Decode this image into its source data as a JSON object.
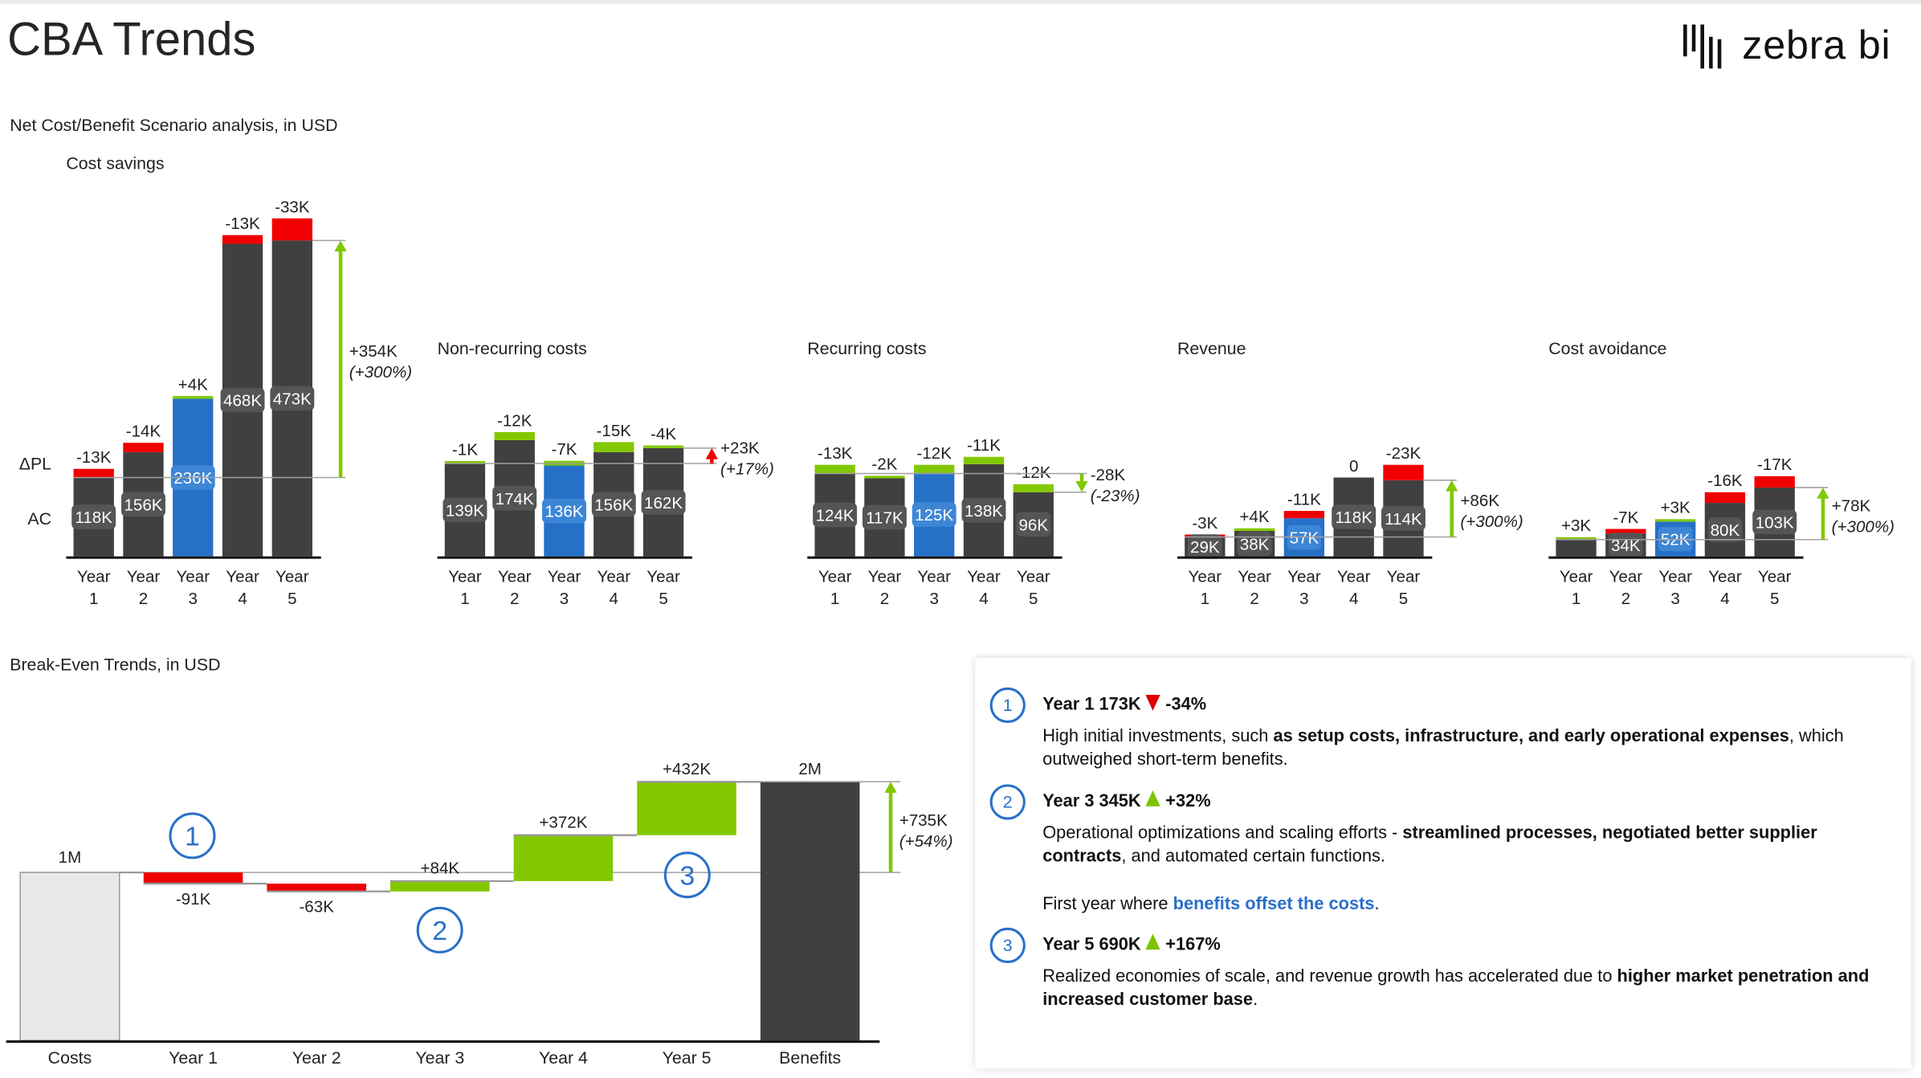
{
  "header": {
    "title": "CBA Trends",
    "logo_text": "zebra bi"
  },
  "section1": {
    "subtitle": "Net Cost/Benefit Scenario analysis, in USD",
    "row_labels": {
      "delta": "ΔPL",
      "actual": "AC"
    }
  },
  "section2": {
    "subtitle": "Break-Even Trends, in USD"
  },
  "colors": {
    "dark": "#404040",
    "highlight": "#2770c8",
    "negative": "#f00000",
    "positive": "#82c800",
    "reference": "#a0a0a0",
    "light_bar": "#e8e8e8",
    "marker": "#2a6fc9"
  },
  "chart_data": [
    {
      "type": "bar",
      "title": "Cost savings",
      "unit": "K USD",
      "highlight_index": 2,
      "negative_is_good": false,
      "bars": [
        {
          "cat": [
            "Year",
            "1"
          ],
          "ac": 118,
          "ac_label": "118K",
          "delta": -13,
          "delta_label": "-13K"
        },
        {
          "cat": [
            "Year",
            "2"
          ],
          "ac": 156,
          "ac_label": "156K",
          "delta": -14,
          "delta_label": "-14K"
        },
        {
          "cat": [
            "Year",
            "3"
          ],
          "ac": 236,
          "ac_label": "236K",
          "delta": 4,
          "delta_label": "+4K"
        },
        {
          "cat": [
            "Year",
            "4"
          ],
          "ac": 468,
          "ac_label": "468K",
          "delta": -13,
          "delta_label": "-13K"
        },
        {
          "cat": [
            "Year",
            "5"
          ],
          "ac": 473,
          "ac_label": "473K",
          "delta": -33,
          "delta_label": "-33K"
        }
      ],
      "total_delta_label": "+354K",
      "total_pct_label": "(+300%)",
      "arrow_direction": "up",
      "arrow_color": "#82c800"
    },
    {
      "type": "bar",
      "title": "Non-recurring costs",
      "unit": "K USD",
      "highlight_index": 2,
      "negative_is_good": true,
      "bars": [
        {
          "cat": [
            "Year",
            "1"
          ],
          "ac": 139,
          "ac_label": "139K",
          "delta": -1,
          "delta_label": "-1K"
        },
        {
          "cat": [
            "Year",
            "2"
          ],
          "ac": 174,
          "ac_label": "174K",
          "delta": -12,
          "delta_label": "-12K"
        },
        {
          "cat": [
            "Year",
            "3"
          ],
          "ac": 136,
          "ac_label": "136K",
          "delta": -7,
          "delta_label": "-7K"
        },
        {
          "cat": [
            "Year",
            "4"
          ],
          "ac": 156,
          "ac_label": "156K",
          "delta": -15,
          "delta_label": "-15K"
        },
        {
          "cat": [
            "Year",
            "5"
          ],
          "ac": 162,
          "ac_label": "162K",
          "delta": -4,
          "delta_label": "-4K"
        }
      ],
      "total_delta_label": "+23K",
      "total_pct_label": "(+17%)",
      "arrow_direction": "up",
      "arrow_color": "#f00000"
    },
    {
      "type": "bar",
      "title": "Recurring costs",
      "unit": "K USD",
      "highlight_index": 2,
      "negative_is_good": true,
      "bars": [
        {
          "cat": [
            "Year",
            "1"
          ],
          "ac": 124,
          "ac_label": "124K",
          "delta": -13,
          "delta_label": "-13K"
        },
        {
          "cat": [
            "Year",
            "2"
          ],
          "ac": 117,
          "ac_label": "117K",
          "delta": -2,
          "delta_label": "-2K"
        },
        {
          "cat": [
            "Year",
            "3"
          ],
          "ac": 125,
          "ac_label": "125K",
          "delta": -12,
          "delta_label": "-12K"
        },
        {
          "cat": [
            "Year",
            "4"
          ],
          "ac": 138,
          "ac_label": "138K",
          "delta": -11,
          "delta_label": "-11K"
        },
        {
          "cat": [
            "Year",
            "5"
          ],
          "ac": 96,
          "ac_label": "96K",
          "delta": -12,
          "delta_label": "-12K"
        }
      ],
      "total_delta_label": "-28K",
      "total_pct_label": "(-23%)",
      "arrow_direction": "down",
      "arrow_color": "#82c800"
    },
    {
      "type": "bar",
      "title": "Revenue",
      "unit": "K USD",
      "highlight_index": 2,
      "negative_is_good": false,
      "bars": [
        {
          "cat": [
            "Year",
            "1"
          ],
          "ac": 29,
          "ac_label": "29K",
          "delta": -3,
          "delta_label": "-3K"
        },
        {
          "cat": [
            "Year",
            "2"
          ],
          "ac": 38,
          "ac_label": "38K",
          "delta": 4,
          "delta_label": "+4K"
        },
        {
          "cat": [
            "Year",
            "3"
          ],
          "ac": 57,
          "ac_label": "57K",
          "delta": -11,
          "delta_label": "-11K"
        },
        {
          "cat": [
            "Year",
            "4"
          ],
          "ac": 118,
          "ac_label": "118K",
          "delta": 0,
          "delta_label": "0"
        },
        {
          "cat": [
            "Year",
            "5"
          ],
          "ac": 114,
          "ac_label": "114K",
          "delta": -23,
          "delta_label": "-23K"
        }
      ],
      "total_delta_label": "+86K",
      "total_pct_label": "(+300%)",
      "arrow_direction": "up",
      "arrow_color": "#82c800"
    },
    {
      "type": "bar",
      "title": "Cost avoidance",
      "unit": "K USD",
      "highlight_index": 2,
      "negative_is_good": false,
      "bars": [
        {
          "cat": [
            "Year",
            "1"
          ],
          "ac": 25,
          "delta": 3,
          "delta_label": "+3K"
        },
        {
          "cat": [
            "Year",
            "2"
          ],
          "ac": 34,
          "ac_label": "34K",
          "delta": -7,
          "delta_label": "-7K"
        },
        {
          "cat": [
            "Year",
            "3"
          ],
          "ac": 52,
          "ac_label": "52K",
          "delta": 3,
          "delta_label": "+3K"
        },
        {
          "cat": [
            "Year",
            "4"
          ],
          "ac": 80,
          "ac_label": "80K",
          "delta": -16,
          "delta_label": "-16K"
        },
        {
          "cat": [
            "Year",
            "5"
          ],
          "ac": 103,
          "ac_label": "103K",
          "delta": -17,
          "delta_label": "-17K"
        }
      ],
      "total_delta_label": "+78K",
      "total_pct_label": "(+300%)",
      "arrow_direction": "up",
      "arrow_color": "#82c800"
    },
    {
      "type": "waterfall",
      "unit": "K USD",
      "start": {
        "cat": "Costs",
        "value": 1361,
        "label": "1M"
      },
      "steps": [
        {
          "cat": "Year 1",
          "value": -91,
          "label": "-91K"
        },
        {
          "cat": "Year 2",
          "value": -63,
          "label": "-63K"
        },
        {
          "cat": "Year 3",
          "value": 84,
          "label": "+84K"
        },
        {
          "cat": "Year 4",
          "value": 372,
          "label": "+372K"
        },
        {
          "cat": "Year 5",
          "value": 432,
          "label": "+432K"
        }
      ],
      "end": {
        "cat": "Benefits",
        "value": 2096,
        "label": "2M"
      },
      "total_delta_label": "+735K",
      "total_pct_label": "(+54%)",
      "markers": [
        {
          "label": "1",
          "step": 0,
          "position": "above"
        },
        {
          "label": "2",
          "step": 2,
          "position": "below"
        },
        {
          "label": "3",
          "step": 4,
          "position": "below"
        }
      ]
    }
  ],
  "panel": {
    "items": [
      {
        "number": "1",
        "heading": "Year 1 173K",
        "trend": "down",
        "change": "-34%",
        "body": [
          "High initial investments, such ",
          "as setup costs, infrastructure, and early operational expenses",
          ", which outweighed short-term benefits."
        ]
      },
      {
        "number": "2",
        "heading": "Year 3 345K",
        "trend": "up",
        "change": "+32%",
        "body": [
          "Operational optimizations and scaling efforts - ",
          "streamlined processes, negotiated better supplier contracts",
          ", and automated certain functions."
        ],
        "note": [
          "First year where ",
          "benefits offset the costs",
          "."
        ]
      },
      {
        "number": "3",
        "heading": "Year 5 690K",
        "trend": "up",
        "change": "+167%",
        "body": [
          "Realized economies of scale, and revenue growth has accelerated due to ",
          "higher market penetration and increased customer base",
          "."
        ]
      }
    ]
  }
}
